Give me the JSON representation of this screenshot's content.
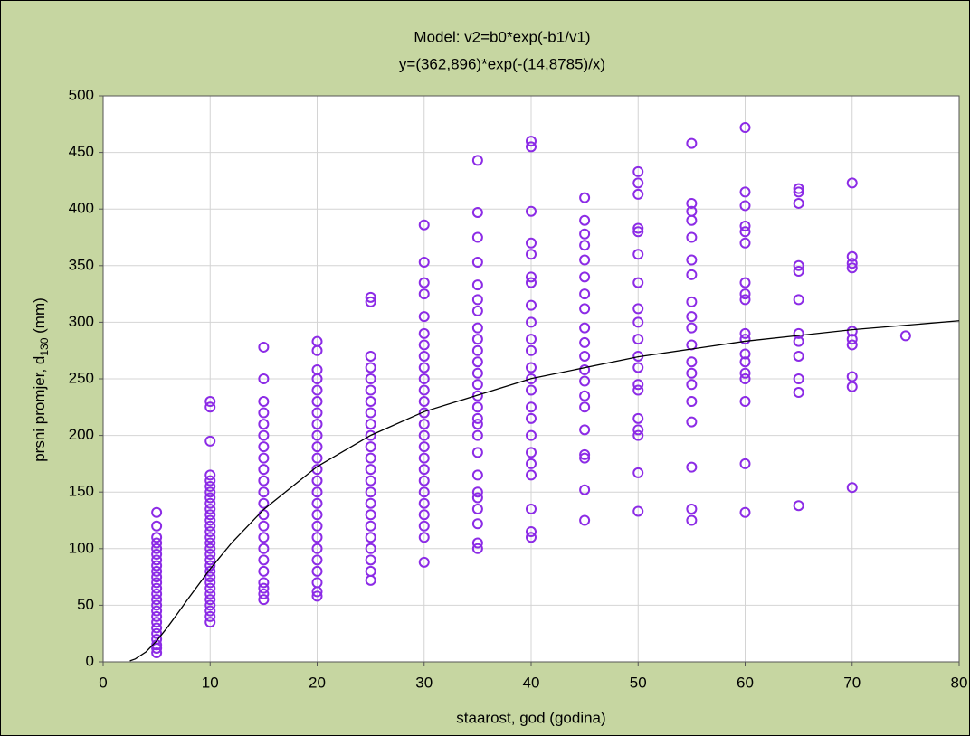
{
  "chart_data": {
    "type": "scatter",
    "title": "Model: v2=b0*exp(-b1/v1)",
    "subtitle": "y=(362,896)*exp(-(14,8785)/x)",
    "x_label": "staarost, god (godina)",
    "y_label": {
      "text": "prsni promjer, d",
      "subscript": "130",
      "suffix": " (mm)"
    },
    "xlim": [
      0,
      80
    ],
    "xticks": [
      0,
      10,
      20,
      30,
      40,
      50,
      60,
      70,
      80
    ],
    "ylim": [
      0,
      500
    ],
    "yticks": [
      0,
      50,
      100,
      150,
      200,
      250,
      300,
      350,
      400,
      450,
      500
    ],
    "grid": true,
    "series": [
      {
        "color": "#8c2be6",
        "x": [
          5,
          5,
          5,
          5,
          5,
          5,
          5,
          5,
          5,
          5,
          5,
          5,
          5,
          5,
          5,
          5,
          5,
          5,
          5,
          5,
          5,
          5,
          5,
          5
        ],
        "values": [
          8,
          12,
          15,
          20,
          25,
          30,
          35,
          40,
          45,
          50,
          55,
          60,
          65,
          70,
          75,
          80,
          85,
          90,
          95,
          100,
          105,
          110,
          120,
          132
        ]
      },
      {
        "color": "#8c2be6",
        "x": [
          10,
          10,
          10,
          10,
          10,
          10,
          10,
          10,
          10,
          10,
          10,
          10,
          10,
          10,
          10,
          10,
          10,
          10,
          10,
          10,
          10,
          10,
          10,
          10,
          10,
          10,
          10,
          10,
          10,
          10
        ],
        "values": [
          35,
          40,
          45,
          50,
          55,
          60,
          65,
          70,
          75,
          80,
          85,
          90,
          95,
          100,
          105,
          110,
          115,
          120,
          125,
          130,
          135,
          140,
          145,
          150,
          155,
          160,
          165,
          195,
          225,
          230
        ]
      },
      {
        "color": "#8c2be6",
        "x": [
          15,
          15,
          15,
          15,
          15,
          15,
          15,
          15,
          15,
          15,
          15,
          15,
          15,
          15,
          15,
          15,
          15,
          15,
          15,
          15,
          15,
          15
        ],
        "values": [
          55,
          60,
          65,
          70,
          80,
          90,
          100,
          110,
          120,
          130,
          140,
          150,
          160,
          170,
          180,
          190,
          200,
          210,
          220,
          230,
          250,
          278
        ]
      },
      {
        "color": "#8c2be6",
        "x": [
          20,
          20,
          20,
          20,
          20,
          20,
          20,
          20,
          20,
          20,
          20,
          20,
          20,
          20,
          20,
          20,
          20,
          20,
          20,
          20,
          20,
          20,
          20,
          20
        ],
        "values": [
          58,
          62,
          70,
          80,
          90,
          100,
          110,
          120,
          130,
          140,
          150,
          160,
          170,
          180,
          190,
          200,
          210,
          220,
          230,
          240,
          250,
          258,
          275,
          283
        ]
      },
      {
        "color": "#8c2be6",
        "x": [
          25,
          25,
          25,
          25,
          25,
          25,
          25,
          25,
          25,
          25,
          25,
          25,
          25,
          25,
          25,
          25,
          25,
          25,
          25,
          25,
          25,
          25,
          25
        ],
        "values": [
          72,
          80,
          90,
          100,
          110,
          120,
          130,
          140,
          150,
          160,
          170,
          180,
          190,
          200,
          210,
          220,
          230,
          240,
          250,
          260,
          270,
          318,
          322
        ]
      },
      {
        "color": "#8c2be6",
        "x": [
          30,
          30,
          30,
          30,
          30,
          30,
          30,
          30,
          30,
          30,
          30,
          30,
          30,
          30,
          30,
          30,
          30,
          30,
          30,
          30,
          30,
          30,
          30,
          30,
          30
        ],
        "values": [
          88,
          110,
          120,
          130,
          140,
          150,
          160,
          170,
          180,
          190,
          200,
          210,
          220,
          230,
          240,
          250,
          260,
          270,
          280,
          290,
          305,
          325,
          335,
          353,
          386
        ]
      },
      {
        "color": "#8c2be6",
        "x": [
          35,
          35,
          35,
          35,
          35,
          35,
          35,
          35,
          35,
          35,
          35,
          35,
          35,
          35,
          35,
          35,
          35,
          35,
          35,
          35,
          35,
          35,
          35,
          35,
          35,
          35
        ],
        "values": [
          100,
          105,
          122,
          135,
          145,
          150,
          165,
          185,
          200,
          210,
          215,
          225,
          235,
          245,
          255,
          265,
          275,
          285,
          295,
          310,
          320,
          333,
          353,
          375,
          397,
          443
        ]
      },
      {
        "color": "#8c2be6",
        "x": [
          40,
          40,
          40,
          40,
          40,
          40,
          40,
          40,
          40,
          40,
          40,
          40,
          40,
          40,
          40,
          40,
          40,
          40,
          40,
          40,
          40,
          40,
          40
        ],
        "values": [
          110,
          115,
          135,
          165,
          175,
          185,
          200,
          215,
          225,
          240,
          250,
          260,
          275,
          285,
          300,
          315,
          335,
          340,
          360,
          370,
          398,
          455,
          460
        ]
      },
      {
        "color": "#8c2be6",
        "x": [
          45,
          45,
          45,
          45,
          45,
          45,
          45,
          45,
          45,
          45,
          45,
          45,
          45,
          45,
          45,
          45,
          45,
          45,
          45,
          45
        ],
        "values": [
          125,
          152,
          180,
          183,
          205,
          225,
          235,
          248,
          258,
          270,
          282,
          295,
          312,
          325,
          340,
          355,
          368,
          378,
          390,
          410
        ]
      },
      {
        "color": "#8c2be6",
        "x": [
          50,
          50,
          50,
          50,
          50,
          50,
          50,
          50,
          50,
          50,
          50,
          50,
          50,
          50,
          50,
          50,
          50,
          50,
          50
        ],
        "values": [
          133,
          167,
          200,
          205,
          215,
          240,
          245,
          260,
          270,
          285,
          300,
          312,
          335,
          360,
          380,
          383,
          413,
          423,
          433
        ]
      },
      {
        "color": "#8c2be6",
        "x": [
          55,
          55,
          55,
          55,
          55,
          55,
          55,
          55,
          55,
          55,
          55,
          55,
          55,
          55,
          55,
          55,
          55,
          55,
          55
        ],
        "values": [
          125,
          135,
          172,
          212,
          230,
          245,
          255,
          265,
          280,
          295,
          305,
          318,
          342,
          355,
          375,
          390,
          398,
          405,
          458
        ]
      },
      {
        "color": "#8c2be6",
        "x": [
          60,
          60,
          60,
          60,
          60,
          60,
          60,
          60,
          60,
          60,
          60,
          60,
          60,
          60,
          60,
          60,
          60,
          60
        ],
        "values": [
          132,
          175,
          230,
          250,
          255,
          265,
          272,
          285,
          290,
          320,
          325,
          335,
          370,
          380,
          385,
          403,
          415,
          472
        ]
      },
      {
        "color": "#8c2be6",
        "x": [
          65,
          65,
          65,
          65,
          65,
          65,
          65,
          65,
          65,
          65,
          65,
          65
        ],
        "values": [
          138,
          238,
          250,
          270,
          283,
          290,
          320,
          345,
          350,
          405,
          415,
          418
        ]
      },
      {
        "color": "#8c2be6",
        "x": [
          70,
          70,
          70,
          70,
          70,
          70,
          70,
          70,
          70,
          70
        ],
        "values": [
          154,
          243,
          252,
          280,
          285,
          292,
          348,
          352,
          358,
          423
        ]
      },
      {
        "color": "#8c2be6",
        "x": [
          75
        ],
        "values": [
          288
        ]
      }
    ],
    "fit": {
      "color": "#000000",
      "x": [
        2.5,
        3,
        4,
        5,
        6,
        7,
        8,
        10,
        12,
        15,
        20,
        25,
        30,
        40,
        50,
        60,
        70,
        80
      ],
      "values": [
        0.94,
        2.55,
        8.8,
        18.5,
        30.4,
        43.3,
        56.5,
        82.0,
        105.0,
        134.6,
        172.5,
        200.1,
        221.0,
        250.2,
        269.5,
        283.2,
        293.4,
        301.3
      ]
    }
  }
}
